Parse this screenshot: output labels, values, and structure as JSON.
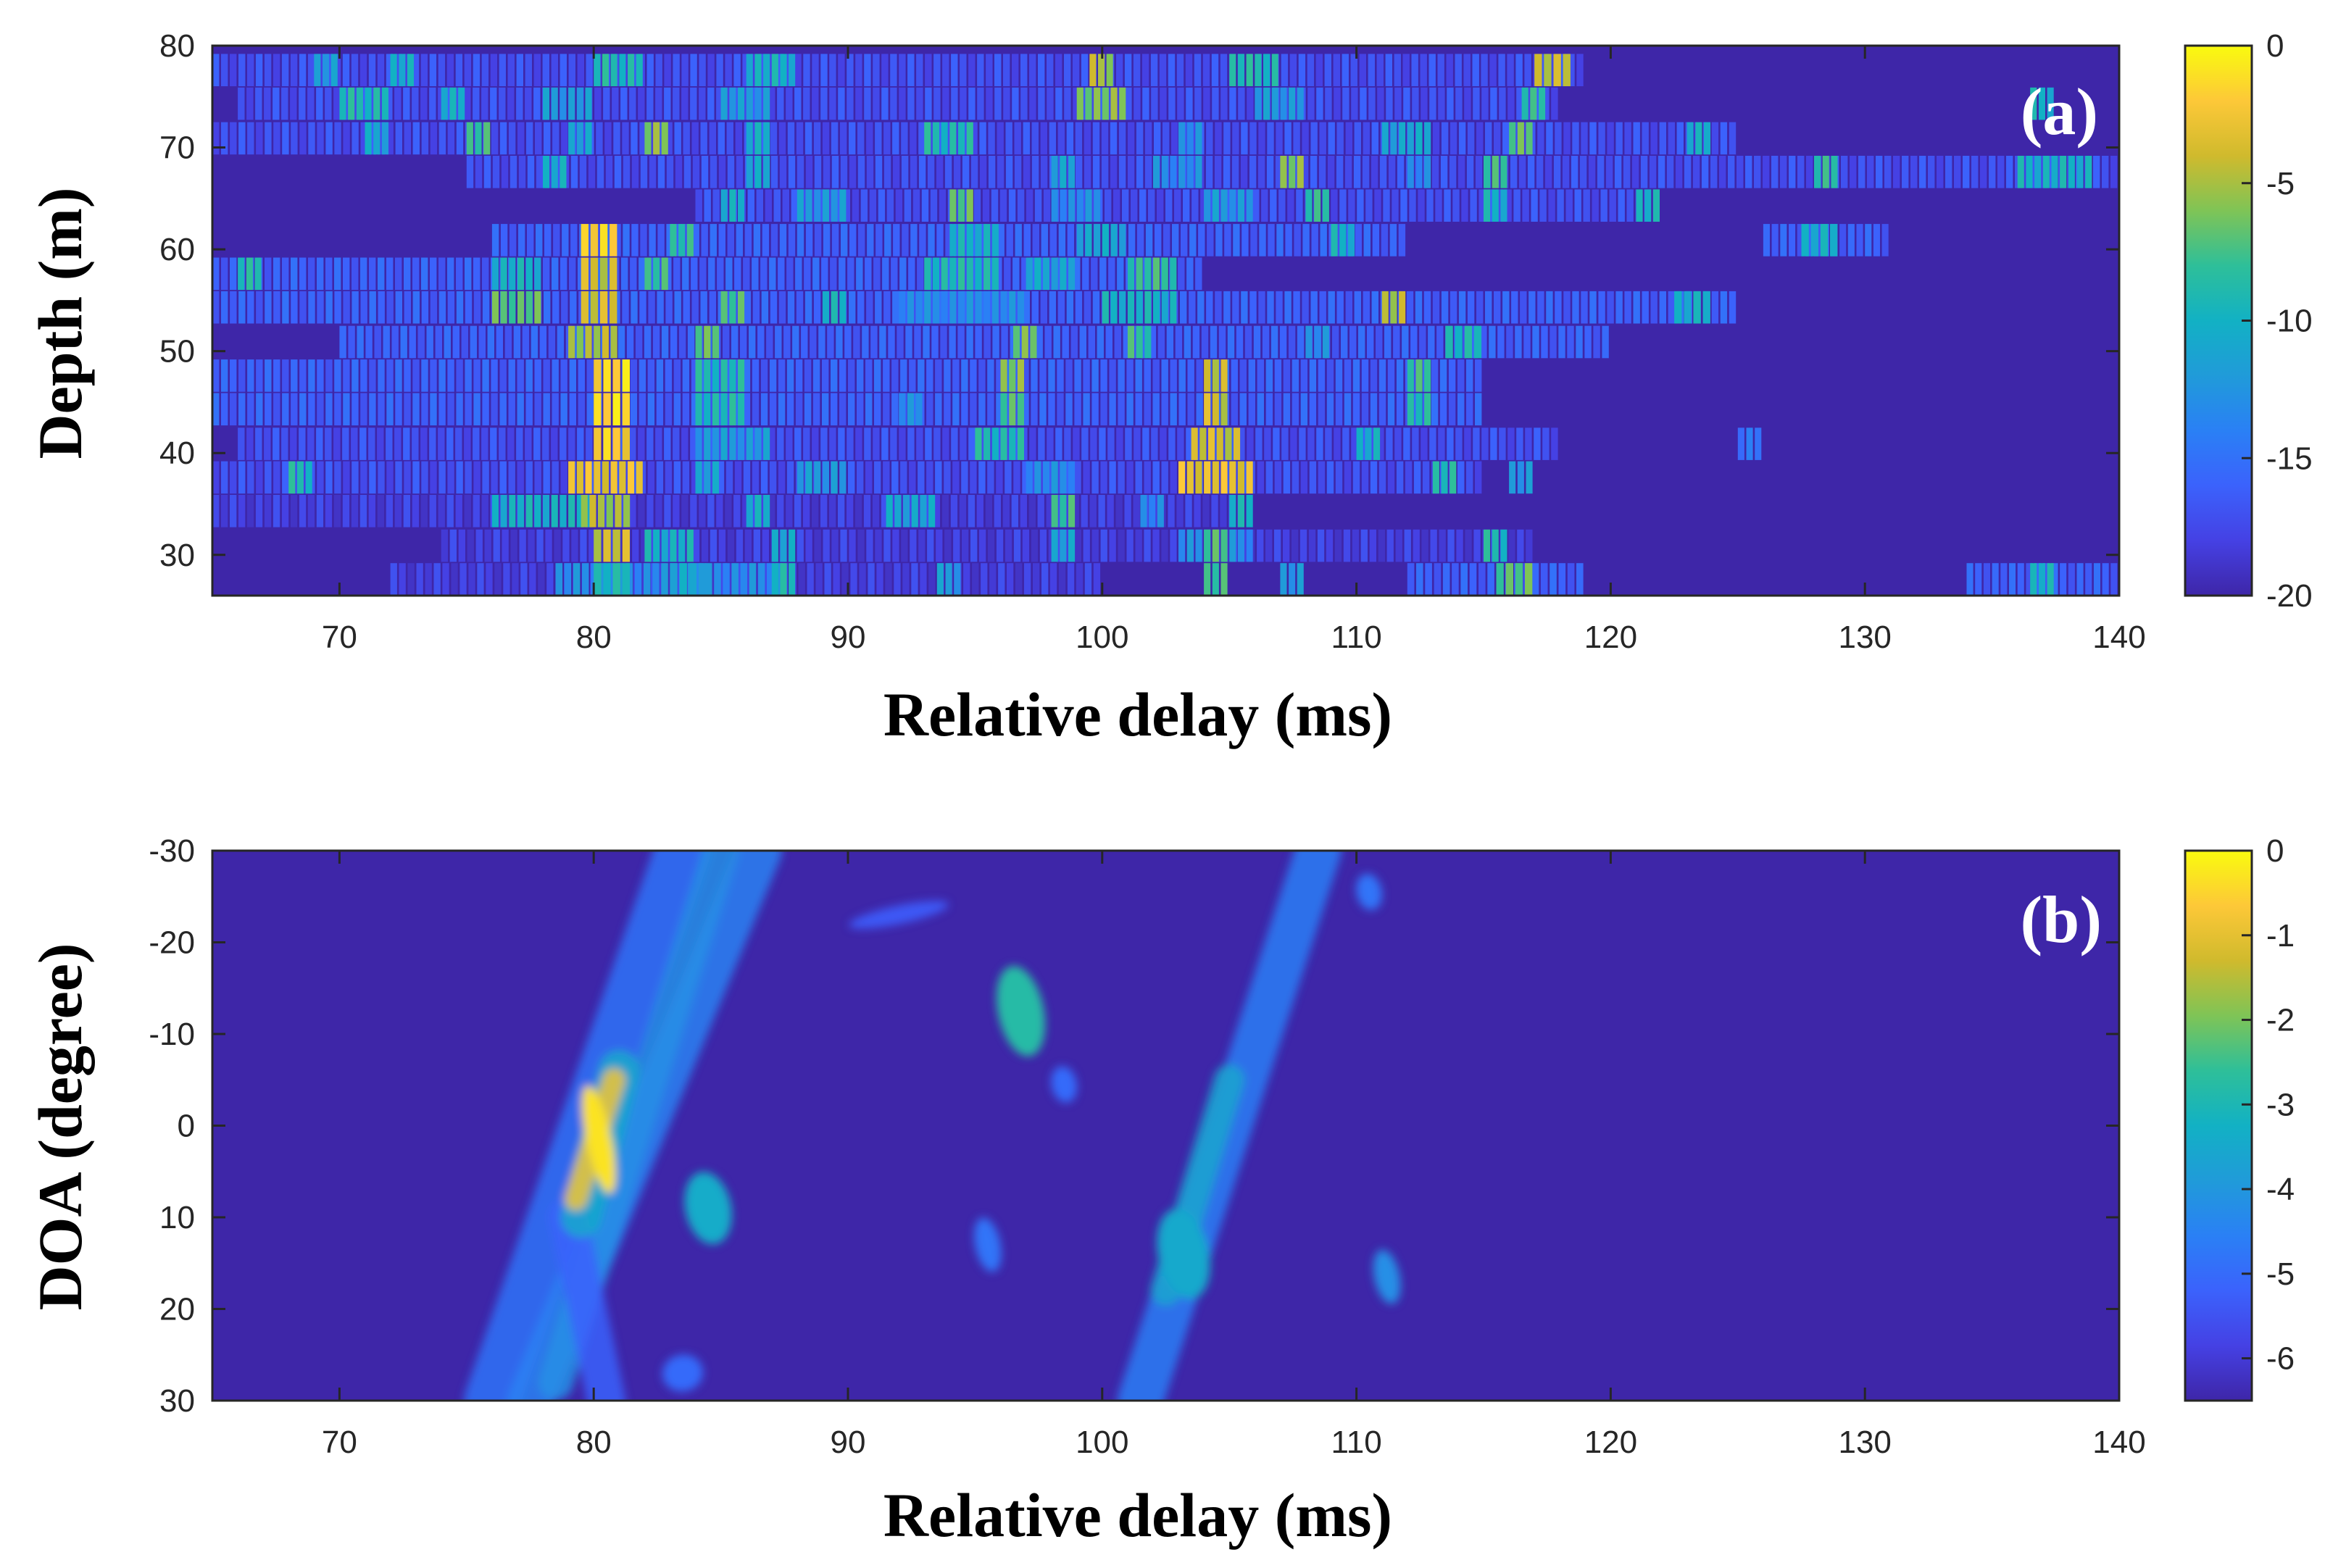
{
  "chart_data": [
    {
      "type": "heatmap",
      "panel_label": "(a)",
      "xlabel": "Relative delay (ms)",
      "ylabel": "Depth (m)",
      "xlim": [
        65,
        140
      ],
      "ylim": [
        80,
        26
      ],
      "x_ticks": [
        70,
        80,
        90,
        100,
        110,
        120,
        130,
        140
      ],
      "y_ticks": [
        30,
        40,
        50,
        60,
        70,
        80
      ],
      "colorbar": {
        "min": -20,
        "max": 0,
        "ticks": [
          0,
          -5,
          -10,
          -15,
          -20
        ],
        "colormap": "parula"
      },
      "background_value": -20,
      "rows": [
        {
          "depth": 27.5,
          "segments": [
            [
              72,
              100,
              -17
            ],
            [
              78.5,
              87.5,
              -12
            ],
            [
              80,
              81.5,
              -8
            ],
            [
              83,
              84.5,
              -10
            ],
            [
              87,
              88,
              -8
            ],
            [
              93.5,
              94.5,
              -11
            ],
            [
              104,
              105,
              -7
            ],
            [
              107,
              108,
              -11
            ],
            [
              112,
              119,
              -15
            ],
            [
              115.5,
              117,
              -6
            ],
            [
              134,
              140,
              -15
            ],
            [
              136.5,
              137.5,
              -9
            ]
          ]
        },
        {
          "depth": 30.8,
          "segments": [
            [
              74,
              117,
              -17
            ],
            [
              80,
              81.5,
              -3
            ],
            [
              82,
              84,
              -9
            ],
            [
              87,
              88,
              -10
            ],
            [
              98,
              99,
              -10
            ],
            [
              103,
              106,
              -12
            ],
            [
              104,
              105,
              -6
            ],
            [
              115,
              116,
              -8
            ]
          ]
        },
        {
          "depth": 34.2,
          "segments": [
            [
              65,
              106,
              -17
            ],
            [
              76,
              80,
              -9
            ],
            [
              79.5,
              81.5,
              -4
            ],
            [
              86,
              87,
              -9
            ],
            [
              91.5,
              93.5,
              -10
            ],
            [
              98,
              99,
              -7
            ],
            [
              101.5,
              102.5,
              -12
            ],
            [
              105,
              106,
              -9
            ]
          ]
        },
        {
          "depth": 37.5,
          "segments": [
            [
              65,
              115,
              -16
            ],
            [
              68,
              69,
              -8
            ],
            [
              79,
              82,
              -2
            ],
            [
              84,
              85,
              -10
            ],
            [
              88,
              90,
              -11
            ],
            [
              97,
              99,
              -12
            ],
            [
              103,
              106,
              -2
            ],
            [
              113,
              114,
              -8
            ],
            [
              116,
              117,
              -11
            ]
          ]
        },
        {
          "depth": 40.8,
          "segments": [
            [
              66,
              118,
              -16
            ],
            [
              80,
              81.5,
              -1
            ],
            [
              84,
              87,
              -11
            ],
            [
              95,
              97,
              -8
            ],
            [
              103.5,
              105.5,
              -3
            ],
            [
              110,
              111,
              -9
            ],
            [
              125,
              126,
              -14
            ]
          ]
        },
        {
          "depth": 44.2,
          "segments": [
            [
              65,
              115,
              -15
            ],
            [
              80,
              81.5,
              -0.5
            ],
            [
              84,
              86,
              -8
            ],
            [
              92,
              93,
              -12
            ],
            [
              96,
              97,
              -6
            ],
            [
              104,
              105,
              -3
            ],
            [
              112,
              113,
              -8
            ]
          ]
        },
        {
          "depth": 47.5,
          "segments": [
            [
              65,
              115,
              -15
            ],
            [
              80,
              81.5,
              -0.5
            ],
            [
              84,
              86,
              -8
            ],
            [
              96,
              97,
              -5
            ],
            [
              104,
              105,
              -3
            ],
            [
              112,
              113,
              -7
            ]
          ]
        },
        {
          "depth": 50.8,
          "segments": [
            [
              70,
              120,
              -15
            ],
            [
              79,
              81,
              -4
            ],
            [
              84,
              85,
              -6
            ],
            [
              96.5,
              97.5,
              -5
            ],
            [
              101,
              102,
              -7
            ],
            [
              108,
              109,
              -12
            ],
            [
              113.5,
              115,
              -8
            ]
          ]
        },
        {
          "depth": 54.2,
          "segments": [
            [
              65,
              125,
              -15
            ],
            [
              76,
              78,
              -6
            ],
            [
              79.5,
              81,
              -3
            ],
            [
              85,
              86,
              -6
            ],
            [
              89,
              90,
              -9
            ],
            [
              92,
              97,
              -12
            ],
            [
              100,
              103,
              -9
            ],
            [
              111,
              112,
              -4
            ],
            [
              122.5,
              124,
              -9
            ]
          ]
        },
        {
          "depth": 57.5,
          "segments": [
            [
              65,
              104,
              -15
            ],
            [
              66,
              67,
              -8
            ],
            [
              76,
              78,
              -9
            ],
            [
              79.5,
              81,
              -3
            ],
            [
              82,
              83,
              -7
            ],
            [
              93,
              96,
              -8
            ],
            [
              97,
              99,
              -10
            ],
            [
              101,
              103,
              -7
            ]
          ]
        },
        {
          "depth": 60.8,
          "segments": [
            [
              76,
              112,
              -15
            ],
            [
              79.5,
              81,
              -1
            ],
            [
              83,
              84,
              -7
            ],
            [
              94,
              96,
              -9
            ],
            [
              99,
              101,
              -10
            ],
            [
              109,
              110,
              -9
            ],
            [
              126,
              131,
              -15
            ],
            [
              127.5,
              129,
              -9
            ]
          ]
        },
        {
          "depth": 64.2,
          "segments": [
            [
              84,
              122,
              -16
            ],
            [
              85,
              86,
              -9
            ],
            [
              88,
              90,
              -11
            ],
            [
              94,
              95,
              -6
            ],
            [
              98,
              100,
              -12
            ],
            [
              104,
              106,
              -11
            ],
            [
              108,
              109,
              -7
            ],
            [
              115,
              116,
              -9
            ],
            [
              121,
              122,
              -9
            ]
          ]
        },
        {
          "depth": 67.5,
          "segments": [
            [
              75,
              140,
              -16
            ],
            [
              78,
              79,
              -9
            ],
            [
              86,
              87,
              -10
            ],
            [
              98,
              99,
              -10
            ],
            [
              102,
              104,
              -12
            ],
            [
              107,
              108,
              -5
            ],
            [
              112,
              113,
              -12
            ],
            [
              115,
              116,
              -7
            ],
            [
              128,
              129,
              -7
            ],
            [
              136,
              139,
              -9
            ]
          ]
        },
        {
          "depth": 70.8,
          "segments": [
            [
              65,
              125,
              -16
            ],
            [
              71,
              72,
              -10
            ],
            [
              75,
              76,
              -7
            ],
            [
              79,
              80,
              -10
            ],
            [
              82,
              83,
              -5
            ],
            [
              86,
              87,
              -9
            ],
            [
              93,
              95,
              -8
            ],
            [
              103,
              104,
              -12
            ],
            [
              111,
              113,
              -10
            ],
            [
              116,
              117,
              -6
            ],
            [
              123,
              124,
              -9
            ]
          ]
        },
        {
          "depth": 74.2,
          "segments": [
            [
              66,
              118,
              -16
            ],
            [
              70,
              72,
              -8
            ],
            [
              74,
              75,
              -9
            ],
            [
              78,
              80,
              -11
            ],
            [
              85,
              87,
              -11
            ],
            [
              99,
              101,
              -5
            ],
            [
              106,
              108,
              -11
            ],
            [
              116.5,
              117.5,
              -7
            ],
            [
              136.5,
              137.5,
              -9
            ]
          ]
        },
        {
          "depth": 77.5,
          "segments": [
            [
              65,
              119,
              -16
            ],
            [
              69,
              70,
              -11
            ],
            [
              72,
              73,
              -9
            ],
            [
              80,
              82,
              -8
            ],
            [
              86,
              88,
              -9
            ],
            [
              99.5,
              100.5,
              -4
            ],
            [
              105,
              107,
              -8
            ],
            [
              117,
              118.5,
              -3
            ]
          ]
        }
      ]
    },
    {
      "type": "heatmap",
      "panel_label": "(b)",
      "xlabel": "Relative delay (ms)",
      "ylabel": "DOA (degree)",
      "xlim": [
        65,
        140
      ],
      "ylim": [
        -30,
        30
      ],
      "x_ticks": [
        70,
        80,
        90,
        100,
        110,
        120,
        130,
        140
      ],
      "y_ticks": [
        -30,
        -20,
        -10,
        0,
        10,
        20,
        30
      ],
      "colorbar": {
        "min": -6.5,
        "max": 0,
        "ticks": [
          0,
          -1,
          -2,
          -3,
          -4,
          -5,
          -6
        ],
        "colormap": "parula"
      },
      "background_value": -6.5,
      "streaks": [
        {
          "x0": 76,
          "y0": 30,
          "x1": 83.5,
          "y1": -30,
          "value": -4.8,
          "width": 2.2
        },
        {
          "x0": 77.5,
          "y0": 30,
          "x1": 86.5,
          "y1": -30,
          "value": -4.5,
          "width": 1.8
        },
        {
          "x0": 78.5,
          "y0": 28,
          "x1": 85,
          "y1": -30,
          "value": -4.2,
          "width": 1.4
        },
        {
          "x0": 80.5,
          "y0": 30,
          "x1": 79,
          "y1": 10,
          "value": -5.2,
          "width": 1.5
        },
        {
          "x0": 79.5,
          "y0": 10,
          "x1": 81,
          "y1": -6,
          "value": -3.5,
          "width": 1.6
        },
        {
          "x0": 79.3,
          "y0": 8,
          "x1": 80.8,
          "y1": -5,
          "value": -0.8,
          "width": 0.9
        },
        {
          "x0": 101.5,
          "y0": 30,
          "x1": 108.5,
          "y1": -30,
          "value": -4.6,
          "width": 1.8
        },
        {
          "x0": 102.5,
          "y0": 18,
          "x1": 105,
          "y1": -5,
          "value": -3.6,
          "width": 1.2
        }
      ],
      "blobs": [
        {
          "x": 80.2,
          "y": 1.5,
          "rx": 0.5,
          "ry": 6,
          "value": -0.3
        },
        {
          "x": 84.5,
          "y": 9,
          "rx": 0.9,
          "ry": 4,
          "value": -3.4
        },
        {
          "x": 96.8,
          "y": -12.5,
          "rx": 0.9,
          "ry": 5,
          "value": -2.8
        },
        {
          "x": 98.5,
          "y": -4.5,
          "rx": 0.5,
          "ry": 2,
          "value": -5
        },
        {
          "x": 95.5,
          "y": 13,
          "rx": 0.5,
          "ry": 3,
          "value": -4.8
        },
        {
          "x": 103.2,
          "y": 14,
          "rx": 1,
          "ry": 5,
          "value": -3.5
        },
        {
          "x": 111.2,
          "y": 16.5,
          "rx": 0.5,
          "ry": 3,
          "value": -4.2
        },
        {
          "x": 110.5,
          "y": -25.5,
          "rx": 0.5,
          "ry": 2,
          "value": -4.8
        },
        {
          "x": 92,
          "y": -23,
          "rx": 2,
          "ry": 1,
          "value": -5.4
        },
        {
          "x": 83.5,
          "y": 27,
          "rx": 0.8,
          "ry": 2,
          "value": -5
        }
      ]
    }
  ]
}
